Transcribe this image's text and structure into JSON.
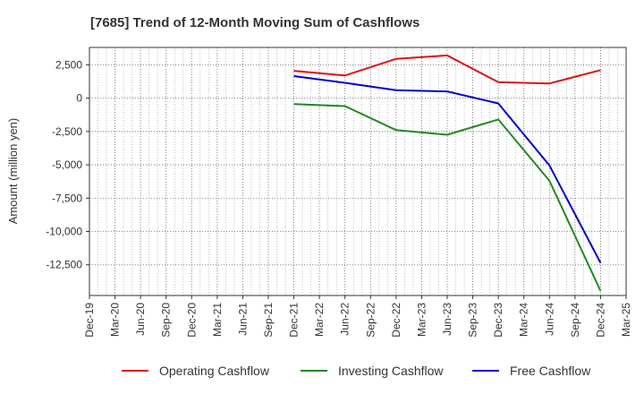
{
  "chart_data": {
    "type": "line",
    "title": "[7685]  Trend of 12-Month Moving Sum of Cashflows",
    "xlabel": "",
    "ylabel": "Amount (million yen)",
    "x_ticks": [
      "Dec-19",
      "Mar-20",
      "Jun-20",
      "Sep-20",
      "Dec-20",
      "Mar-21",
      "Jun-21",
      "Sep-21",
      "Dec-21",
      "Mar-22",
      "Jun-22",
      "Sep-22",
      "Dec-22",
      "Mar-23",
      "Jun-23",
      "Sep-23",
      "Dec-23",
      "Mar-24",
      "Jun-24",
      "Sep-24",
      "Dec-24",
      "Mar-25"
    ],
    "y_ticks": [
      2500,
      0,
      -2500,
      -5000,
      -7500,
      -10000,
      -12500
    ],
    "y_tick_labels": [
      "2,500",
      "0",
      "-2,500",
      "-5,000",
      "-7,500",
      "-10,000",
      "-12,500"
    ],
    "ylim": [
      -14800,
      3800
    ],
    "grid": true,
    "legend_position": "bottom",
    "series": [
      {
        "name": "Operating Cashflow",
        "color": "#dd1111",
        "x": [
          "Dec-21",
          "Jun-22",
          "Dec-22",
          "Jun-23",
          "Dec-23",
          "Jun-24",
          "Dec-24"
        ],
        "values": [
          2050,
          1700,
          2950,
          3200,
          1200,
          1100,
          2100
        ]
      },
      {
        "name": "Investing Cashflow",
        "color": "#228822",
        "x": [
          "Dec-21",
          "Jun-22",
          "Dec-22",
          "Jun-23",
          "Dec-23",
          "Jun-24",
          "Dec-24"
        ],
        "values": [
          -450,
          -600,
          -2400,
          -2750,
          -1600,
          -6200,
          -14450
        ]
      },
      {
        "name": "Free Cashflow",
        "color": "#0000cc",
        "x": [
          "Dec-21",
          "Jun-22",
          "Dec-22",
          "Jun-23",
          "Dec-23",
          "Jun-24",
          "Dec-24"
        ],
        "values": [
          1650,
          1150,
          600,
          500,
          -400,
          -5050,
          -12350
        ]
      }
    ]
  }
}
